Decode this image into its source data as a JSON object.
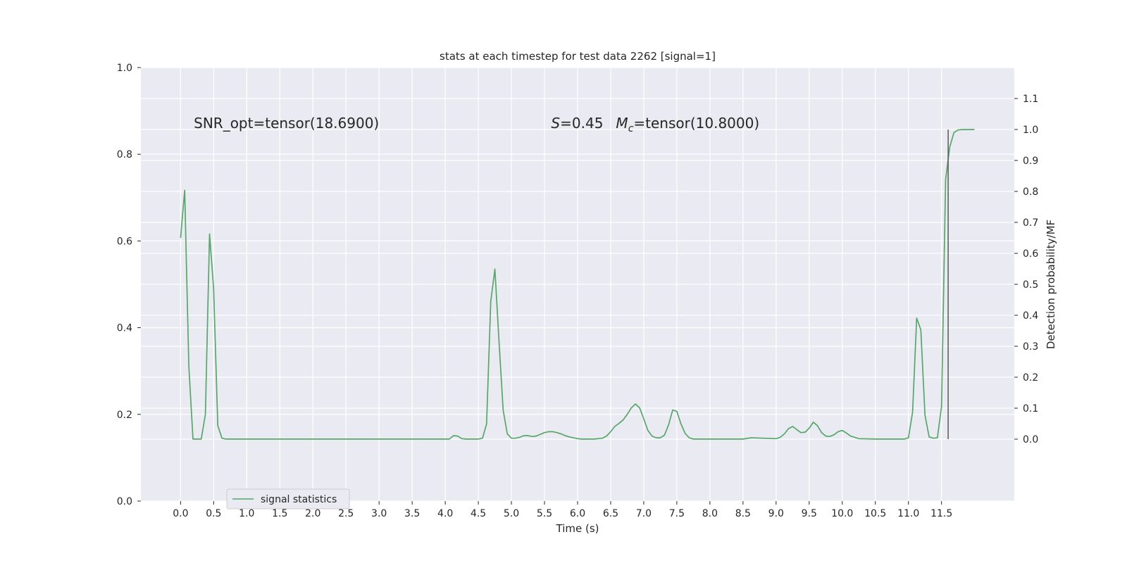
{
  "chart_data": {
    "type": "line",
    "title": "stats at each timestep for test data 2262 [signal=1]",
    "xlabel": "Time (s)",
    "ylabel_left": "",
    "ylabel_right": "Detection probability/MF",
    "annotations": {
      "snr": "SNR_opt=tensor(18.6900)",
      "s_sym": "S",
      "s_val": "=0.45",
      "mc_sym": "M",
      "mc_sub": "c",
      "mc_val": "=tensor(10.8000)"
    },
    "legend": {
      "label": "signal statistics",
      "position": "lower-left"
    },
    "grid": true,
    "xlim": [
      -0.6,
      12.6
    ],
    "xticks": [
      0.0,
      0.5,
      1.0,
      1.5,
      2.0,
      2.5,
      3.0,
      3.5,
      4.0,
      4.5,
      5.0,
      5.5,
      6.0,
      6.5,
      7.0,
      7.5,
      8.0,
      8.5,
      9.0,
      9.5,
      10.0,
      10.5,
      11.0,
      11.5
    ],
    "xtick_labels": [
      "0.0",
      "0.5",
      "1.0",
      "1.5",
      "2.0",
      "2.5",
      "3.0",
      "3.5",
      "4.0",
      "4.5",
      "5.0",
      "5.5",
      "6.0",
      "6.5",
      "7.0",
      "7.5",
      "8.0",
      "8.5",
      "9.0",
      "9.5",
      "10.0",
      "10.5",
      "11.0",
      "11.5"
    ],
    "ylim_left": [
      0.0,
      1.0
    ],
    "yticks_left": [
      0.0,
      0.2,
      0.4,
      0.6,
      0.8,
      1.0
    ],
    "ytick_labels_left": [
      "0.0",
      "0.2",
      "0.4",
      "0.6",
      "0.8",
      "1.0"
    ],
    "ylim_right": [
      -0.2,
      1.2
    ],
    "yticks_right": [
      0.0,
      0.1,
      0.2,
      0.3,
      0.4,
      0.5,
      0.6,
      0.7,
      0.8,
      0.9,
      1.0,
      1.1
    ],
    "ytick_labels_right": [
      "0.0",
      "0.1",
      "0.2",
      "0.3",
      "0.4",
      "0.5",
      "0.6",
      "0.7",
      "0.8",
      "0.9",
      "1.0",
      "1.1"
    ],
    "series": [
      {
        "name": "signal statistics",
        "axis": "left",
        "color": "#55a868",
        "x": [
          0.0,
          0.0625,
          0.125,
          0.1875,
          0.25,
          0.3125,
          0.375,
          0.4375,
          0.5,
          0.5625,
          0.625,
          0.6875,
          0.75,
          1.0,
          2.0,
          3.0,
          4.0,
          4.0625,
          4.125,
          4.1875,
          4.25,
          4.3125,
          4.375,
          4.5,
          4.5625,
          4.625,
          4.6875,
          4.75,
          4.8125,
          4.875,
          4.9375,
          5.0,
          5.0625,
          5.125,
          5.1875,
          5.25,
          5.3125,
          5.375,
          5.4375,
          5.5,
          5.5625,
          5.625,
          5.6875,
          5.75,
          5.8125,
          5.875,
          5.9375,
          6.0,
          6.0625,
          6.25,
          6.375,
          6.4375,
          6.5,
          6.5625,
          6.625,
          6.6875,
          6.75,
          6.8125,
          6.875,
          6.9375,
          7.0,
          7.0625,
          7.125,
          7.1875,
          7.25,
          7.3125,
          7.375,
          7.4375,
          7.5,
          7.5625,
          7.625,
          7.6875,
          7.75,
          7.8125,
          7.875,
          8.0,
          8.5,
          8.625,
          9.0,
          9.0625,
          9.125,
          9.1875,
          9.25,
          9.3125,
          9.375,
          9.4375,
          9.5,
          9.5625,
          9.625,
          9.6875,
          9.75,
          9.8125,
          9.875,
          9.9375,
          10.0,
          10.0625,
          10.125,
          10.25,
          10.5,
          10.9375,
          11.0,
          11.0625,
          11.125,
          11.1875,
          11.25,
          11.3125,
          11.375,
          11.4375,
          11.5,
          11.5625,
          11.625,
          11.6875,
          11.75,
          11.8125,
          11.875,
          11.9375,
          12.0
        ],
        "y": [
          0.607,
          0.717,
          0.31,
          0.143,
          0.143,
          0.143,
          0.2,
          0.616,
          0.49,
          0.174,
          0.145,
          0.143,
          0.143,
          0.143,
          0.143,
          0.143,
          0.143,
          0.143,
          0.151,
          0.15,
          0.144,
          0.143,
          0.143,
          0.143,
          0.145,
          0.178,
          0.46,
          0.535,
          0.37,
          0.21,
          0.155,
          0.145,
          0.145,
          0.147,
          0.151,
          0.151,
          0.149,
          0.15,
          0.154,
          0.158,
          0.16,
          0.16,
          0.158,
          0.155,
          0.151,
          0.148,
          0.146,
          0.144,
          0.143,
          0.143,
          0.145,
          0.15,
          0.16,
          0.172,
          0.179,
          0.187,
          0.2,
          0.215,
          0.224,
          0.215,
          0.19,
          0.163,
          0.15,
          0.146,
          0.146,
          0.152,
          0.176,
          0.21,
          0.207,
          0.178,
          0.156,
          0.146,
          0.143,
          0.143,
          0.143,
          0.143,
          0.143,
          0.146,
          0.144,
          0.147,
          0.155,
          0.167,
          0.172,
          0.165,
          0.158,
          0.159,
          0.168,
          0.182,
          0.174,
          0.158,
          0.15,
          0.149,
          0.153,
          0.16,
          0.163,
          0.157,
          0.15,
          0.144,
          0.143,
          0.143,
          0.146,
          0.205,
          0.422,
          0.395,
          0.198,
          0.148,
          0.145,
          0.146,
          0.218,
          0.742,
          0.817,
          0.85,
          0.856,
          0.857,
          0.857,
          0.857,
          0.857
        ]
      },
      {
        "name": "",
        "axis": "right",
        "color": "#5a5a5a",
        "x": [
          11.6,
          11.6
        ],
        "y": [
          0.0,
          1.0
        ]
      }
    ]
  }
}
